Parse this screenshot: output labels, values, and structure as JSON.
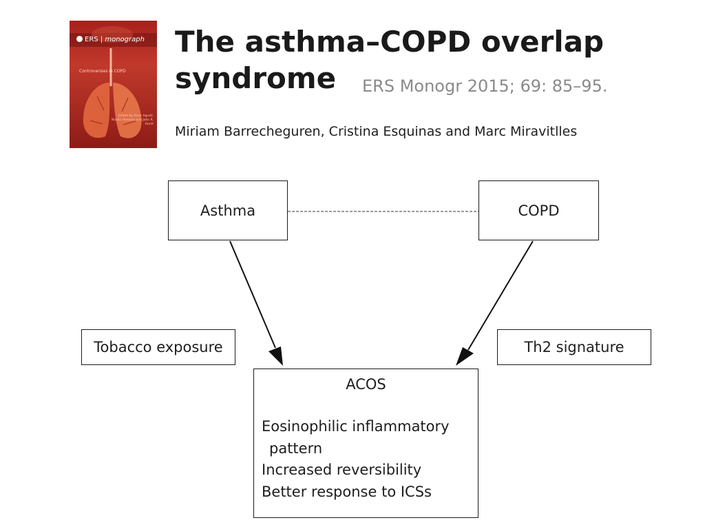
{
  "cover": {
    "publisher": "ERS",
    "series": "monograph",
    "subtitle": "Controversies in COPD",
    "editors": "Edited by Alvar Agustí, Nicola Hanania and John R. Hurst"
  },
  "header": {
    "title": "The asthma–COPD overlap syndrome",
    "citation": "ERS Monogr 2015; 69: 85–95.",
    "authors": "Miriam Barrecheguren, Cristina Esquinas and Marc Miravitlles"
  },
  "diagram": {
    "asthma": "Asthma",
    "copd": "COPD",
    "tobacco": "Tobacco exposure",
    "th2": "Th2 signature",
    "acos": {
      "title": "ACOS",
      "items": [
        "Eosinophilic inflammatory",
        "pattern",
        "Increased reversibility",
        "Better response to ICSs"
      ]
    }
  },
  "colors": {
    "cover": "#a8201c",
    "citation": "#8a8a8a",
    "text": "#1a1a1a"
  }
}
